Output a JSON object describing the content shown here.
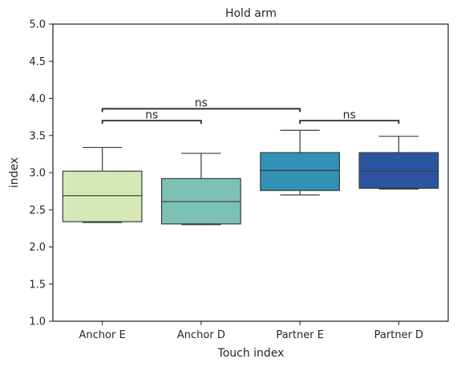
{
  "chart_data": {
    "type": "box",
    "title": "Hold arm",
    "xlabel": "Touch index",
    "ylabel": "index",
    "ylim": [
      1.0,
      5.0
    ],
    "yticks": [
      "1.0",
      "1.5",
      "2.0",
      "2.5",
      "3.0",
      "3.5",
      "4.0",
      "4.5",
      "5.0"
    ],
    "grid": false,
    "categories": [
      "Anchor E",
      "Anchor D",
      "Partner E",
      "Partner D"
    ],
    "boxes": [
      {
        "category": "Anchor E",
        "whisker_low": 2.33,
        "q1": 2.34,
        "median": 2.69,
        "q3": 3.02,
        "whisker_high": 3.34,
        "color": "#d6e8b5"
      },
      {
        "category": "Anchor D",
        "whisker_low": 2.3,
        "q1": 2.31,
        "median": 2.61,
        "q3": 2.92,
        "whisker_high": 3.26,
        "color": "#7cc1b4"
      },
      {
        "category": "Partner E",
        "whisker_low": 2.7,
        "q1": 2.76,
        "median": 3.03,
        "q3": 3.27,
        "whisker_high": 3.57,
        "color": "#3391b5"
      },
      {
        "category": "Partner D",
        "whisker_low": 2.78,
        "q1": 2.79,
        "median": 3.02,
        "q3": 3.27,
        "whisker_high": 3.49,
        "color": "#2c55a0"
      }
    ],
    "annotations": [
      {
        "from": "Anchor E",
        "to": "Anchor D",
        "level": 3.7,
        "text": "ns"
      },
      {
        "from": "Partner E",
        "to": "Partner D",
        "level": 3.7,
        "text": "ns"
      },
      {
        "from": "Anchor E",
        "to": "Partner E",
        "level": 3.86,
        "text": "ns"
      }
    ]
  }
}
